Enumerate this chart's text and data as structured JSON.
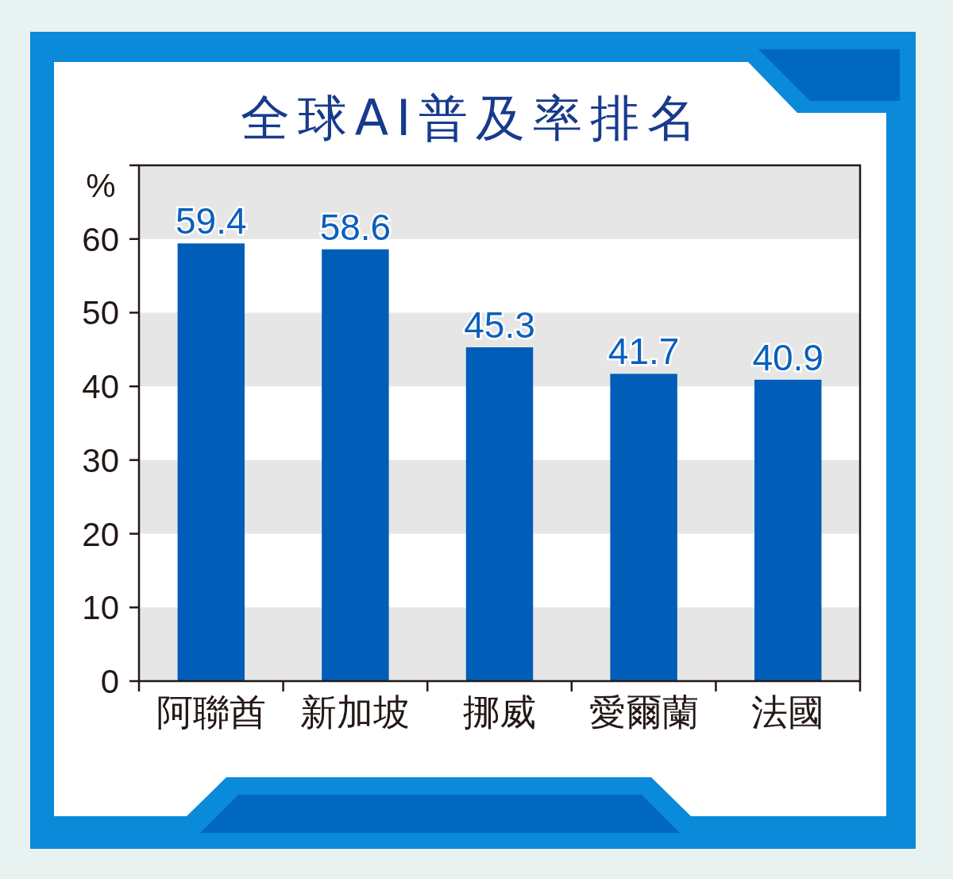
{
  "chart_data": {
    "type": "bar",
    "title": "全球AI普及率排名",
    "ylabel": "%",
    "categories": [
      "阿聯酋",
      "新加坡",
      "挪威",
      "愛爾蘭",
      "法國"
    ],
    "values": [
      59.4,
      58.6,
      45.3,
      41.7,
      40.9
    ],
    "color": "#005eb8",
    "ylim": [
      0,
      70
    ],
    "yticks": [
      0,
      10,
      20,
      30,
      40,
      50,
      60,
      {
        "value": 70,
        "label": null
      }
    ],
    "bands": [
      {
        "axis": "y",
        "from": 0,
        "to": 10,
        "color": "#e6e6e6"
      },
      {
        "axis": "y",
        "from": 20,
        "to": 30,
        "color": "#e6e6e6"
      },
      {
        "axis": "y",
        "from": 40,
        "to": 50,
        "color": "#e6e6e6"
      },
      {
        "axis": "y",
        "from": 60,
        "to": 70,
        "color": "#e6e6e6"
      }
    ],
    "data_labels": true
  }
}
